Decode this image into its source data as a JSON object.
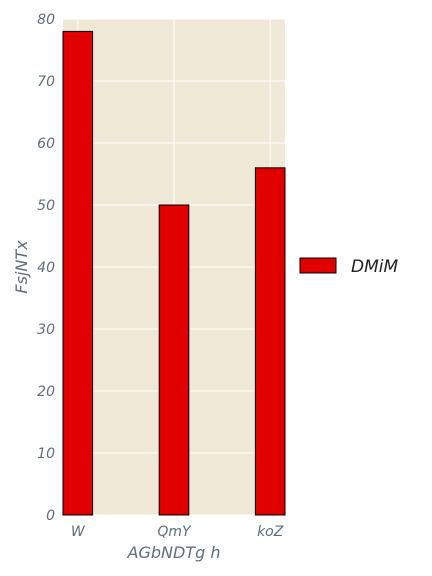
{
  "chart_data": {
    "type": "bar",
    "categories": [
      "W",
      "QmY",
      "koZ"
    ],
    "series": [
      {
        "name": "DMiM",
        "values": [
          78,
          50,
          56
        ]
      }
    ],
    "xlabel": "AGbNDTg  h",
    "ylabel": "FsjNTx",
    "ylim": [
      0,
      80
    ],
    "yticks": [
      0,
      10,
      20,
      30,
      40,
      50,
      60,
      70,
      80
    ],
    "grid": true,
    "legend_position": "right",
    "colors": {
      "bar": "#e00000",
      "bar_edge": "#000000",
      "plot_background": "#efe8d6",
      "grid": "#ffffff"
    }
  }
}
